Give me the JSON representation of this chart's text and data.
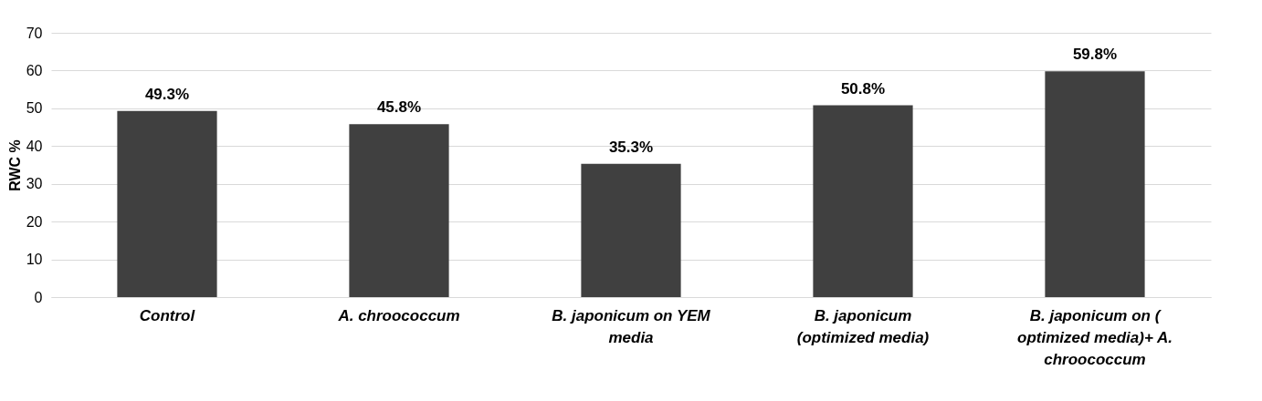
{
  "chart_data": {
    "type": "bar",
    "ylabel": "RWC %",
    "categories": [
      "Control",
      "A. chroococcum",
      "B. japonicum on YEM media",
      "B. japonicum (optimized media)",
      "B. japonicum on ( optimized media)+ A. chroococcum"
    ],
    "values": [
      49.3,
      45.8,
      35.3,
      50.8,
      59.8
    ],
    "value_labels": [
      "49.3%",
      "45.8%",
      "35.3%",
      "50.8%",
      "59.8%"
    ],
    "color": "#404040",
    "ylim": [
      0,
      70
    ],
    "yticks": [
      0,
      10,
      20,
      30,
      40,
      50,
      60,
      70
    ],
    "grid": "y"
  }
}
